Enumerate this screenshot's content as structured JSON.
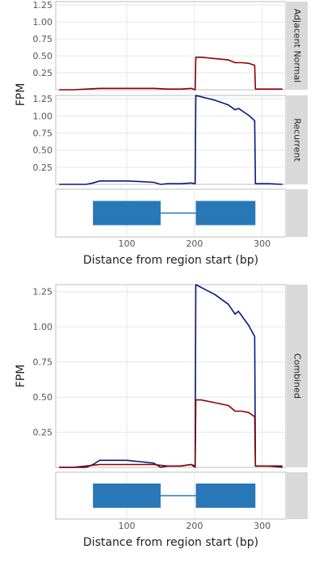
{
  "chart_data": [
    {
      "type": "line",
      "ylabel": "FPM",
      "xlabel": "Distance from region start (bp)",
      "x_ticks": [
        100,
        200,
        300
      ],
      "y_ticks": [
        0.25,
        0.5,
        0.75,
        1.0,
        1.25
      ],
      "y_tick_labels": [
        "0.25",
        "0.50",
        "0.75",
        "1.00",
        "1.25"
      ],
      "xlim": [
        -5,
        335
      ],
      "colors": {
        "Adjacent Normal": "#8B0000",
        "Recurrent": "#0A1A7A",
        "exon": "#2878B8",
        "strip": "#D9D9D9",
        "grid": "#E6E6E6"
      },
      "panels": [
        {
          "strip": "Adjacent Normal",
          "ylim": [
            0,
            1.3
          ],
          "series": [
            {
              "x": [
                0,
                20,
                40,
                60,
                80,
                100,
                120,
                140,
                160,
                180,
                195,
                201,
                202,
                210,
                230,
                250,
                260,
                270,
                280,
                289,
                290,
                300,
                310,
                330
              ],
              "y": [
                0.0,
                0.0,
                0.01,
                0.02,
                0.02,
                0.02,
                0.02,
                0.02,
                0.01,
                0.01,
                0.02,
                0.0,
                0.48,
                0.48,
                0.46,
                0.44,
                0.4,
                0.4,
                0.39,
                0.36,
                0.01,
                0.01,
                0.01,
                0.01
              ]
            }
          ]
        },
        {
          "strip": "Recurrent",
          "ylim": [
            0,
            1.3
          ],
          "series": [
            {
              "x": [
                0,
                20,
                40,
                50,
                60,
                80,
                100,
                120,
                140,
                150,
                160,
                170,
                180,
                195,
                201,
                202,
                210,
                230,
                250,
                260,
                265,
                280,
                289,
                290,
                300,
                310,
                330
              ],
              "y": [
                0.0,
                0.0,
                0.0,
                0.02,
                0.05,
                0.05,
                0.05,
                0.04,
                0.03,
                0.0,
                0.01,
                0.01,
                0.01,
                0.02,
                0.01,
                1.3,
                1.28,
                1.23,
                1.16,
                1.09,
                1.11,
                1.01,
                0.93,
                0.01,
                0.01,
                0.01,
                0.0
              ]
            }
          ]
        }
      ],
      "gene_model": {
        "exons": [
          [
            50,
            150
          ],
          [
            202,
            290
          ]
        ],
        "intron": [
          150,
          202
        ]
      }
    },
    {
      "type": "line",
      "ylabel": "FPM",
      "xlabel": "Distance from region start (bp)",
      "x_ticks": [
        100,
        200,
        300
      ],
      "y_ticks": [
        0.25,
        0.5,
        0.75,
        1.0,
        1.25
      ],
      "y_tick_labels": [
        "0.25",
        "0.50",
        "0.75",
        "1.00",
        "1.25"
      ],
      "xlim": [
        -5,
        335
      ],
      "panels": [
        {
          "strip": "Combined",
          "ylim": [
            0,
            1.3
          ],
          "series": [
            {
              "x": [
                0,
                20,
                40,
                50,
                60,
                80,
                100,
                120,
                140,
                150,
                160,
                170,
                180,
                195,
                201,
                202,
                210,
                230,
                250,
                260,
                265,
                280,
                289,
                290,
                300,
                310,
                330
              ],
              "y": [
                0.0,
                0.0,
                0.0,
                0.02,
                0.05,
                0.05,
                0.05,
                0.04,
                0.03,
                0.0,
                0.01,
                0.01,
                0.01,
                0.02,
                0.01,
                1.3,
                1.28,
                1.23,
                1.16,
                1.09,
                1.11,
                1.01,
                0.93,
                0.01,
                0.01,
                0.01,
                0.0
              ]
            },
            {
              "x": [
                0,
                20,
                40,
                60,
                80,
                100,
                120,
                140,
                160,
                180,
                195,
                201,
                202,
                210,
                230,
                250,
                260,
                270,
                280,
                289,
                290,
                300,
                310,
                330
              ],
              "y": [
                0.0,
                0.0,
                0.01,
                0.02,
                0.02,
                0.02,
                0.02,
                0.02,
                0.01,
                0.01,
                0.02,
                0.0,
                0.48,
                0.48,
                0.46,
                0.44,
                0.4,
                0.4,
                0.39,
                0.36,
                0.01,
                0.01,
                0.01,
                0.01
              ]
            }
          ]
        }
      ],
      "gene_model": {
        "exons": [
          [
            50,
            150
          ],
          [
            202,
            290
          ]
        ],
        "intron": [
          150,
          202
        ]
      }
    }
  ]
}
